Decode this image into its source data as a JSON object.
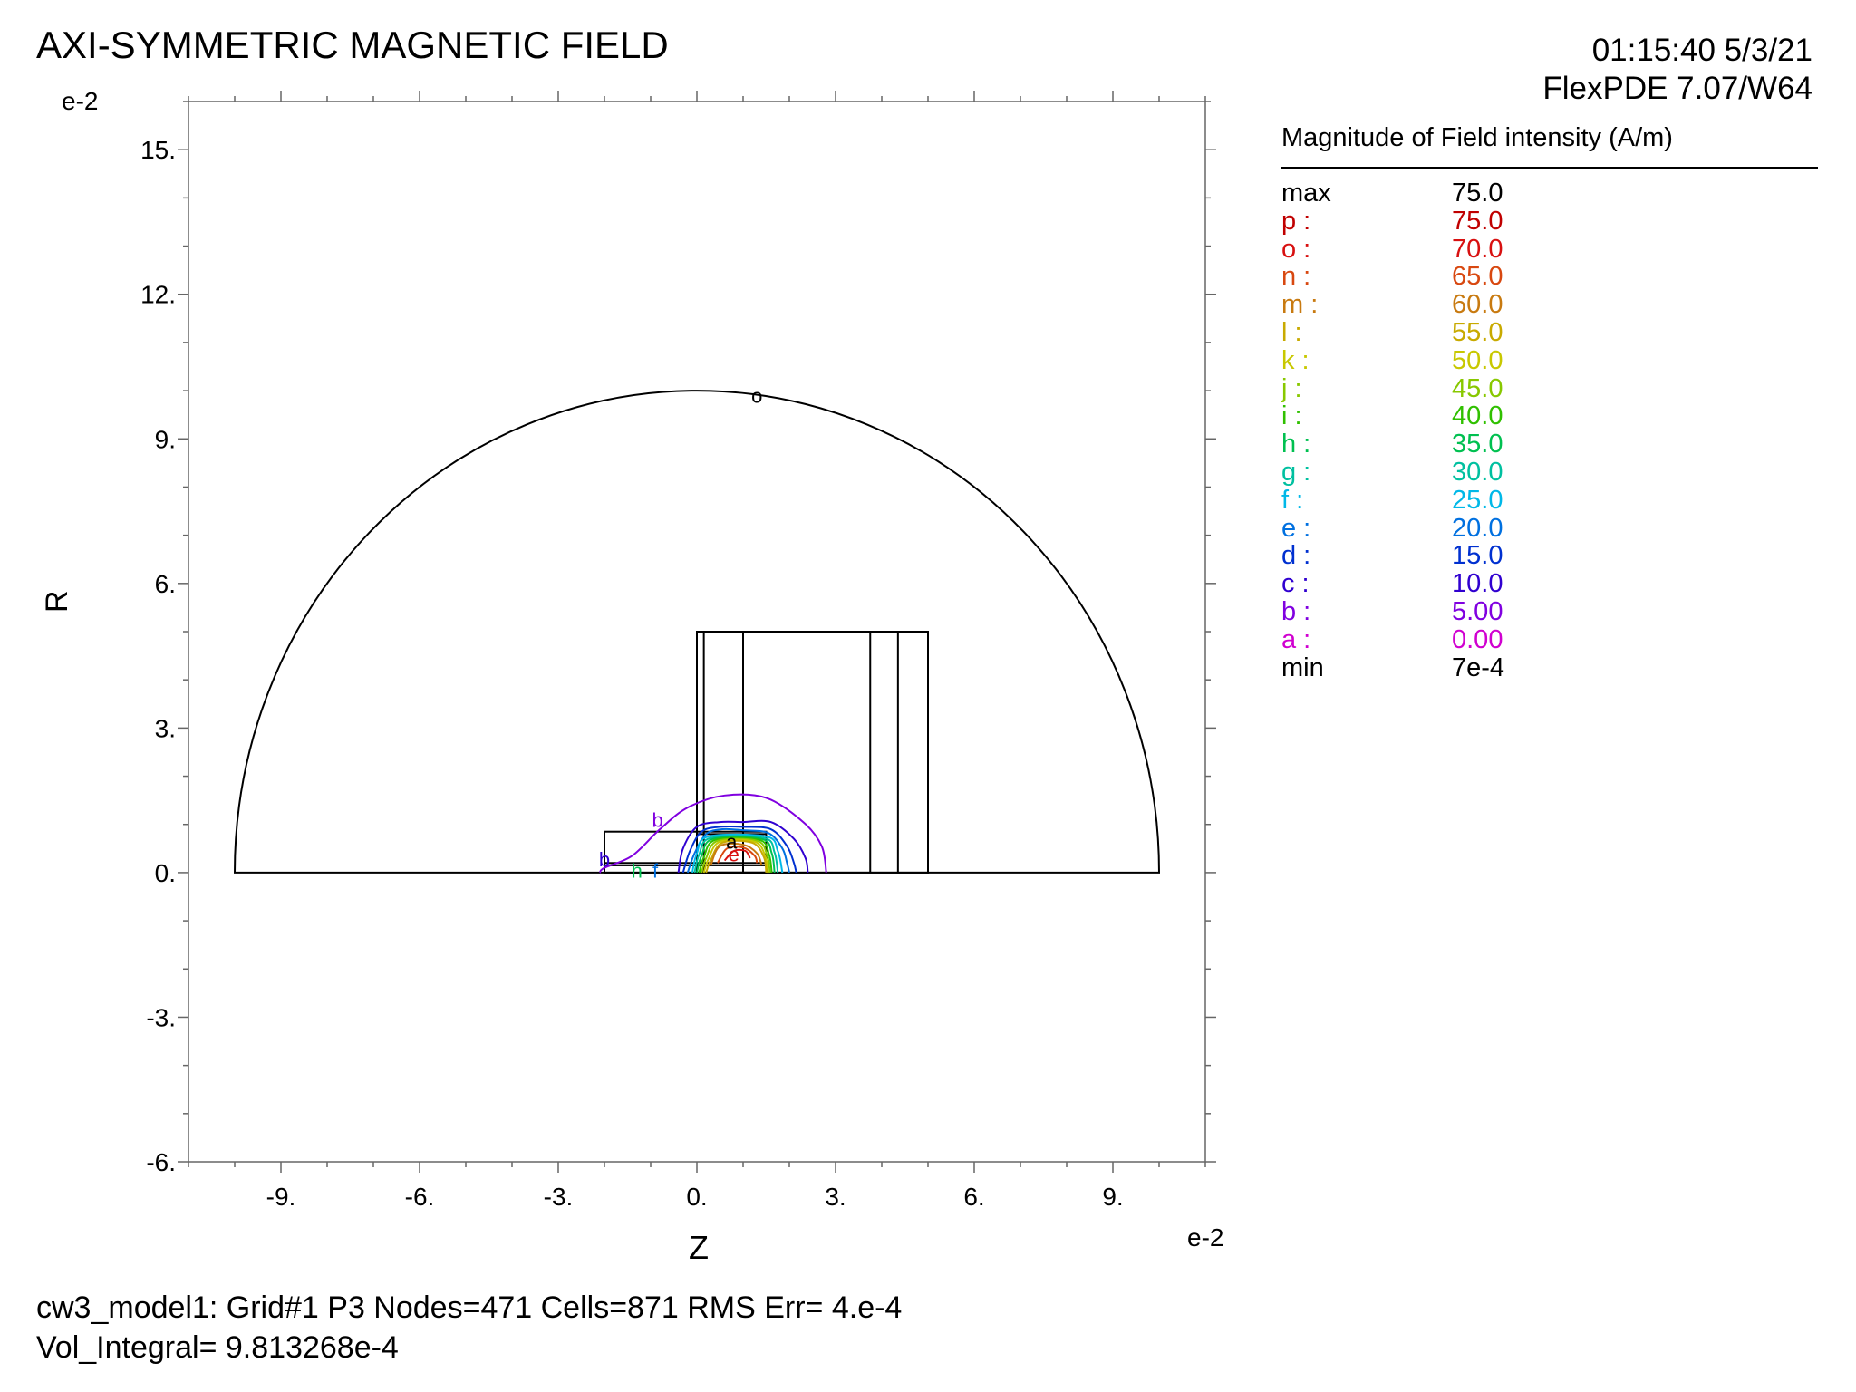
{
  "header": {
    "title": "AXI-SYMMETRIC MAGNETIC FIELD",
    "timestamp": "01:15:40 5/3/21",
    "version": "FlexPDE 7.07/W64"
  },
  "footer": {
    "line1": "cw3_model1:  Grid#1  P3  Nodes=471 Cells=871 RMS Err= 4.e-4",
    "line2": "Vol_Integral=  9.813268e-4"
  },
  "chart_data": {
    "type": "contour",
    "xlabel": "Z",
    "ylabel": "R",
    "x_exponent": "e-2",
    "y_exponent": "e-2",
    "xlim": [
      -11,
      11
    ],
    "ylim": [
      -6,
      16
    ],
    "x_ticks": [
      -9,
      -6,
      -3,
      0,
      3,
      6,
      9
    ],
    "x_tick_labels": [
      "-9.",
      "-6.",
      "-3.",
      "0.",
      "3.",
      "6.",
      "9."
    ],
    "y_ticks": [
      -6,
      -3,
      0,
      3,
      6,
      9,
      12,
      15
    ],
    "y_tick_labels": [
      "-6.",
      "-3.",
      "0.",
      "3.",
      "6.",
      "9.",
      "12.",
      "15."
    ],
    "domain": {
      "outer_semicircle": {
        "center": [
          0,
          0
        ],
        "radius": 10
      },
      "rectangles": [
        {
          "z": [
            0,
            5
          ],
          "r": [
            0,
            5
          ]
        },
        {
          "z": [
            0.15,
            0.15
          ],
          "r": [
            0,
            5
          ]
        },
        {
          "z": [
            1.0,
            1.0
          ],
          "r": [
            0,
            5
          ]
        },
        {
          "z": [
            3.75,
            3.75
          ],
          "r": [
            0,
            5
          ]
        },
        {
          "z": [
            4.35,
            4.35
          ],
          "r": [
            0,
            5
          ]
        },
        {
          "z": [
            -2.0,
            1.5
          ],
          "r": [
            0,
            0.85
          ]
        },
        {
          "z": [
            0,
            1.5
          ],
          "r": [
            0,
            0.8
          ]
        },
        {
          "z": [
            -2.0,
            1.5
          ],
          "r": [
            0.15,
            0.2
          ]
        }
      ]
    },
    "legend_title": "Magnitude of Field intensity (A/m)",
    "legend": [
      {
        "key": "max",
        "value": "75.0",
        "color": "#000000"
      },
      {
        "key": "p :",
        "value": "75.0",
        "color": "#c00000"
      },
      {
        "key": "o :",
        "value": "70.0",
        "color": "#d81010"
      },
      {
        "key": "n :",
        "value": "65.0",
        "color": "#d84810"
      },
      {
        "key": "m :",
        "value": "60.0",
        "color": "#c87a10"
      },
      {
        "key": "l :",
        "value": "55.0",
        "color": "#c8aa00"
      },
      {
        "key": "k :",
        "value": "50.0",
        "color": "#c8c800"
      },
      {
        "key": "j :",
        "value": "45.0",
        "color": "#88c800"
      },
      {
        "key": "i :",
        "value": "40.0",
        "color": "#30c000"
      },
      {
        "key": "h :",
        "value": "35.0",
        "color": "#00c050"
      },
      {
        "key": "g :",
        "value": "30.0",
        "color": "#00c0a0"
      },
      {
        "key": "f :",
        "value": "25.0",
        "color": "#00b8e8"
      },
      {
        "key": "e :",
        "value": "20.0",
        "color": "#0070e0"
      },
      {
        "key": "d :",
        "value": "15.0",
        "color": "#0030d0"
      },
      {
        "key": "c :",
        "value": "10.0",
        "color": "#3000d0"
      },
      {
        "key": "b :",
        "value": "5.00",
        "color": "#8000e0"
      },
      {
        "key": "a :",
        "value": "0.00",
        "color": "#d000d0"
      },
      {
        "key": "min",
        "value": "7e-4",
        "color": "#000000"
      }
    ],
    "contours": [
      {
        "label": "b",
        "color": "#8000e0",
        "level": 5,
        "points": [
          [
            -2.1,
            0
          ],
          [
            -2.0,
            0.1
          ],
          [
            -1.4,
            0.35
          ],
          [
            -0.8,
            0.9
          ],
          [
            -0.2,
            1.35
          ],
          [
            0.6,
            1.6
          ],
          [
            1.5,
            1.55
          ],
          [
            2.3,
            1.05
          ],
          [
            2.7,
            0.55
          ],
          [
            2.8,
            0
          ]
        ]
      },
      {
        "label": "c",
        "color": "#3000d0",
        "level": 10,
        "points": [
          [
            -0.4,
            0
          ],
          [
            -0.3,
            0.5
          ],
          [
            0,
            0.95
          ],
          [
            0.5,
            1.05
          ],
          [
            1.0,
            1.05
          ],
          [
            1.6,
            1.05
          ],
          [
            2.1,
            0.7
          ],
          [
            2.35,
            0.3
          ],
          [
            2.4,
            0
          ]
        ]
      },
      {
        "label": "d",
        "color": "#0030d0",
        "level": 15,
        "points": [
          [
            -0.3,
            0
          ],
          [
            -0.15,
            0.45
          ],
          [
            0.1,
            0.85
          ],
          [
            0.5,
            0.95
          ],
          [
            1.0,
            0.95
          ],
          [
            1.6,
            0.9
          ],
          [
            1.95,
            0.55
          ],
          [
            2.1,
            0.2
          ],
          [
            2.15,
            0
          ]
        ]
      },
      {
        "label": "e",
        "color": "#0070e0",
        "level": 20,
        "points": [
          [
            -0.2,
            0
          ],
          [
            -0.05,
            0.4
          ],
          [
            0.2,
            0.8
          ],
          [
            0.55,
            0.9
          ],
          [
            1.0,
            0.88
          ],
          [
            1.55,
            0.82
          ],
          [
            1.85,
            0.5
          ],
          [
            1.95,
            0.2
          ],
          [
            2.0,
            0
          ]
        ]
      },
      {
        "label": "f",
        "color": "#00b8e8",
        "level": 25,
        "points": [
          [
            -0.1,
            0
          ],
          [
            0.0,
            0.4
          ],
          [
            0.25,
            0.75
          ],
          [
            1.5,
            0.75
          ],
          [
            1.75,
            0.45
          ],
          [
            1.85,
            0
          ]
        ]
      },
      {
        "label": "g",
        "color": "#00c0a0",
        "level": 30,
        "points": [
          [
            -0.05,
            0
          ],
          [
            0.05,
            0.38
          ],
          [
            0.3,
            0.72
          ],
          [
            1.45,
            0.72
          ],
          [
            1.68,
            0.42
          ],
          [
            1.75,
            0
          ]
        ]
      },
      {
        "label": "h",
        "color": "#00c050",
        "level": 35,
        "points": [
          [
            0.0,
            0
          ],
          [
            0.1,
            0.35
          ],
          [
            0.35,
            0.7
          ],
          [
            1.4,
            0.7
          ],
          [
            1.62,
            0.4
          ],
          [
            1.68,
            0
          ]
        ]
      },
      {
        "label": "i",
        "color": "#30c000",
        "level": 40,
        "points": [
          [
            0.05,
            0
          ],
          [
            0.15,
            0.32
          ],
          [
            0.4,
            0.68
          ],
          [
            1.35,
            0.68
          ],
          [
            1.56,
            0.38
          ],
          [
            1.62,
            0
          ]
        ]
      },
      {
        "label": "j",
        "color": "#88c800",
        "level": 45,
        "points": [
          [
            0.1,
            0
          ],
          [
            0.2,
            0.3
          ],
          [
            0.45,
            0.66
          ],
          [
            1.3,
            0.66
          ],
          [
            1.52,
            0.36
          ],
          [
            1.58,
            0
          ]
        ]
      },
      {
        "label": "k",
        "color": "#c8c800",
        "level": 50,
        "points": [
          [
            0.15,
            0
          ],
          [
            0.25,
            0.28
          ],
          [
            0.5,
            0.64
          ],
          [
            1.25,
            0.64
          ],
          [
            1.48,
            0.34
          ],
          [
            1.54,
            0
          ]
        ]
      },
      {
        "label": "l",
        "color": "#c8aa00",
        "level": 55,
        "points": [
          [
            0.2,
            0
          ],
          [
            0.3,
            0.26
          ],
          [
            0.55,
            0.62
          ],
          [
            1.2,
            0.62
          ],
          [
            1.45,
            0.32
          ],
          [
            1.5,
            0
          ]
        ]
      },
      {
        "label": "m",
        "color": "#c87a10",
        "level": 60,
        "points": [
          [
            0.3,
            0.15
          ],
          [
            0.5,
            0.55
          ],
          [
            1.0,
            0.58
          ],
          [
            1.3,
            0.4
          ],
          [
            1.4,
            0.15
          ]
        ]
      },
      {
        "label": "n",
        "color": "#d84810",
        "level": 65,
        "points": [
          [
            0.45,
            0.2
          ],
          [
            0.65,
            0.5
          ],
          [
            1.0,
            0.52
          ],
          [
            1.25,
            0.35
          ],
          [
            1.3,
            0.2
          ]
        ]
      },
      {
        "label": "o",
        "color": "#d81010",
        "level": 70,
        "points": [
          [
            0.6,
            0.25
          ],
          [
            0.8,
            0.45
          ],
          [
            1.05,
            0.45
          ],
          [
            1.15,
            0.3
          ]
        ]
      }
    ],
    "contour_labels": [
      {
        "text": "o",
        "z": 1.3,
        "r": 9.9,
        "color": "#000000"
      },
      {
        "text": "b",
        "z": -0.85,
        "r": 1.1,
        "color": "#8000e0"
      },
      {
        "text": "a",
        "z": 0.75,
        "r": 0.65,
        "color": "#000000"
      },
      {
        "text": "e",
        "z": 0.8,
        "r": 0.38,
        "color": "#d81010"
      },
      {
        "text": "b",
        "z": -2.0,
        "r": 0.28,
        "color": "#3000d0"
      },
      {
        "text": "h",
        "z": -1.3,
        "r": 0.05,
        "color": "#00c050"
      },
      {
        "text": "f",
        "z": -0.9,
        "r": 0.05,
        "color": "#0070e0"
      }
    ]
  }
}
